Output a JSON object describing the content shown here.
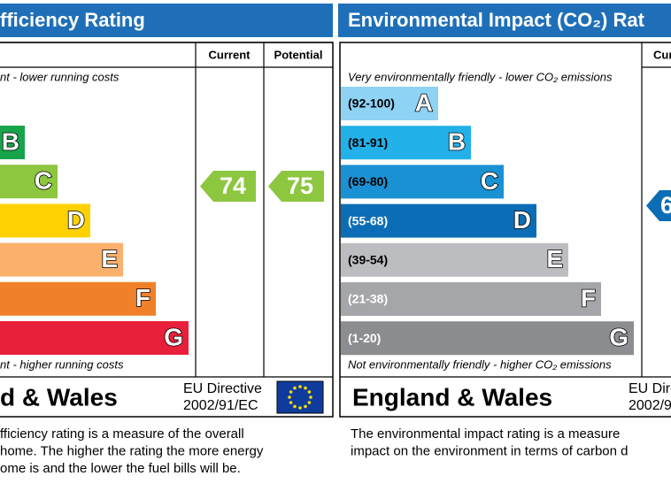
{
  "left": {
    "title": "fficiency Rating",
    "col_current": "Current",
    "col_potential": "Potential",
    "top_note": "nt - lower running costs",
    "bottom_note": "nt - higher running costs",
    "bands": [
      {
        "letter": "B"
      },
      {
        "letter": "C"
      },
      {
        "letter": "D"
      },
      {
        "letter": "E"
      },
      {
        "letter": "F"
      },
      {
        "letter": "G"
      }
    ],
    "current": "74",
    "potential": "75",
    "region": "d & Wales",
    "directive": [
      "EU Directive",
      "2002/91/EC"
    ],
    "description": [
      "fficiency rating is a measure of the overall",
      " home.  The higher the rating the more energy",
      "ome is and the lower the fuel bills will be."
    ]
  },
  "right": {
    "title": "Environmental Impact (CO₂) Rat",
    "col_current": "Cur",
    "top_note": "Very environmentally friendly - lower CO₂ emissions",
    "bottom_note": "Not environmentally friendly - higher CO₂ emissions",
    "bands": [
      {
        "range": "(92-100)",
        "letter": "A"
      },
      {
        "range": "(81-91)",
        "letter": "B"
      },
      {
        "range": "(69-80)",
        "letter": "C"
      },
      {
        "range": "(55-68)",
        "letter": "D"
      },
      {
        "range": "(39-54)",
        "letter": "E"
      },
      {
        "range": "(21-38)",
        "letter": "F"
      },
      {
        "range": "(1-20)",
        "letter": "G"
      }
    ],
    "current": "6",
    "region": "England & Wales",
    "directive": [
      "EU Dire",
      "2002/9"
    ],
    "description": [
      "The environmental impact rating is a measure",
      "impact on the environment in terms of carbon d"
    ]
  }
}
